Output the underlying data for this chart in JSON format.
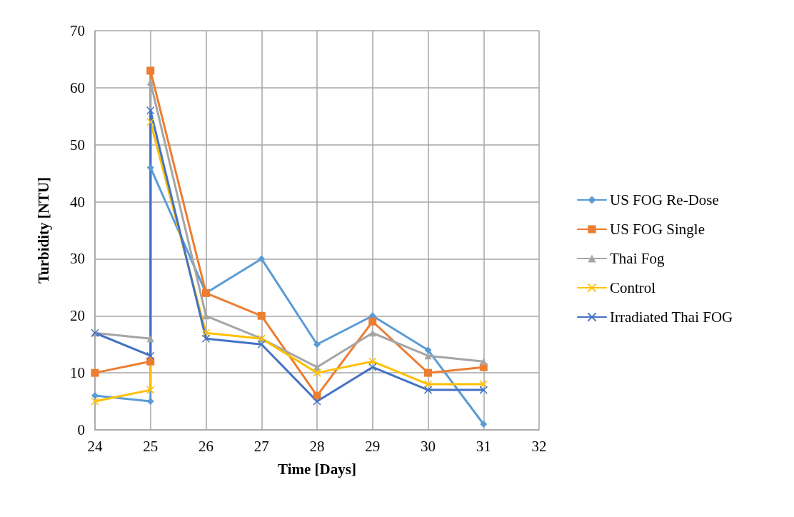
{
  "chart_data": {
    "type": "line",
    "xlabel": "Time [Days]",
    "ylabel": "Turbidity [NTU]",
    "xlim": [
      24,
      32
    ],
    "xticks": [
      24,
      25,
      26,
      27,
      28,
      29,
      30,
      31,
      32
    ],
    "ylim": [
      0,
      70
    ],
    "yticks": [
      0,
      10,
      20,
      30,
      40,
      50,
      60,
      70
    ],
    "grid": true,
    "legend": "right",
    "line_style": "solid",
    "series": [
      {
        "name": "US FOG Re-Dose",
        "color": "#5b9bd5",
        "marker": "diamond",
        "x": [
          24,
          25,
          25,
          26,
          27,
          28,
          29,
          30,
          31
        ],
        "values": [
          6,
          5,
          46,
          24,
          30,
          15,
          20,
          14,
          1
        ]
      },
      {
        "name": "US FOG Single",
        "color": "#ed7d31",
        "marker": "square",
        "x": [
          24,
          25,
          25,
          26,
          27,
          28,
          29,
          30,
          31
        ],
        "values": [
          10,
          12,
          63,
          24,
          20,
          6,
          19,
          10,
          11
        ]
      },
      {
        "name": "Thai Fog",
        "color": "#a5a5a5",
        "marker": "triangle",
        "x": [
          24,
          25,
          25,
          26,
          27,
          28,
          29,
          30,
          31
        ],
        "values": [
          17,
          16,
          61,
          20,
          16,
          11,
          17,
          13,
          12
        ]
      },
      {
        "name": "Control",
        "color": "#ffc000",
        "marker": "cross",
        "x": [
          24,
          25,
          25,
          26,
          27,
          28,
          29,
          30,
          31
        ],
        "values": [
          5,
          7,
          54,
          17,
          16,
          10,
          12,
          8,
          8
        ]
      },
      {
        "name": "Irradiated Thai FOG",
        "color": "#4472c4",
        "marker": "cross",
        "x": [
          24,
          25,
          25,
          26,
          27,
          28,
          29,
          30,
          31
        ],
        "values": [
          17,
          13,
          56,
          16,
          15,
          5,
          11,
          7,
          7
        ]
      }
    ]
  }
}
